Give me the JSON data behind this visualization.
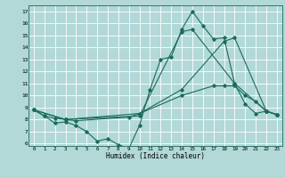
{
  "xlabel": "Humidex (Indice chaleur)",
  "bg_color": "#b2d8d8",
  "grid_color": "#ffffff",
  "line_color": "#1a6b5a",
  "xlim": [
    -0.5,
    23.5
  ],
  "ylim": [
    5.8,
    17.5
  ],
  "xticks": [
    0,
    1,
    2,
    3,
    4,
    5,
    6,
    7,
    8,
    9,
    10,
    11,
    12,
    13,
    14,
    15,
    16,
    17,
    18,
    19,
    20,
    21,
    22,
    23
  ],
  "yticks": [
    6,
    7,
    8,
    9,
    10,
    11,
    12,
    13,
    14,
    15,
    16,
    17
  ],
  "series": [
    {
      "x": [
        0,
        1,
        2,
        3,
        4,
        5,
        6,
        7,
        8,
        9,
        10,
        11,
        12,
        13,
        14,
        15,
        16,
        17,
        18,
        19,
        20,
        21,
        22,
        23
      ],
      "y": [
        8.8,
        8.3,
        7.7,
        7.8,
        7.5,
        7.0,
        6.2,
        6.4,
        5.9,
        5.6,
        7.5,
        10.5,
        13.0,
        13.2,
        15.5,
        17.0,
        15.8,
        14.7,
        14.8,
        11.0,
        9.3,
        8.5,
        8.7,
        8.4
      ]
    },
    {
      "x": [
        0,
        1,
        2,
        3,
        4,
        9,
        10,
        14,
        17,
        18,
        19,
        20,
        21,
        22,
        23
      ],
      "y": [
        8.8,
        8.3,
        8.1,
        8.0,
        7.9,
        8.2,
        8.5,
        10.0,
        10.8,
        10.8,
        10.8,
        10.0,
        9.5,
        8.7,
        8.4
      ]
    },
    {
      "x": [
        0,
        3,
        10,
        14,
        18,
        19,
        22,
        23
      ],
      "y": [
        8.8,
        8.0,
        8.5,
        10.5,
        14.5,
        14.8,
        8.7,
        8.4
      ]
    },
    {
      "x": [
        0,
        3,
        10,
        14,
        15,
        19,
        22,
        23
      ],
      "y": [
        8.8,
        8.0,
        8.3,
        15.3,
        15.5,
        11.0,
        8.7,
        8.4
      ]
    }
  ]
}
